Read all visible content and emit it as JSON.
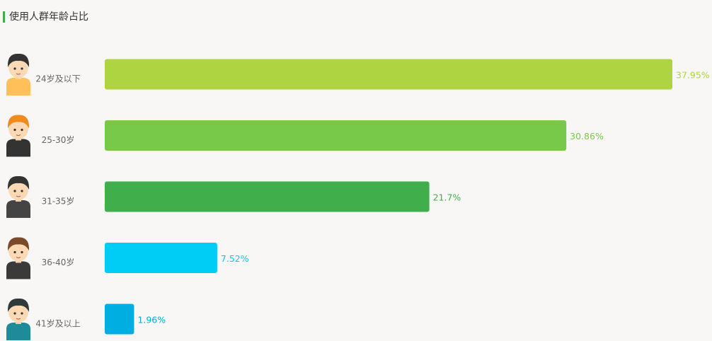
{
  "chart_data": {
    "type": "bar",
    "orientation": "horizontal",
    "title": "使用人群年龄占比",
    "categories": [
      "24岁及以下",
      "25-30岁",
      "31-35岁",
      "36-40岁",
      "41岁及以上"
    ],
    "values": [
      37.95,
      30.86,
      21.7,
      7.52,
      1.96
    ],
    "value_labels": [
      "37.95%",
      "30.86%",
      "21.7%",
      "7.52%",
      "1.96%"
    ],
    "colors": [
      "#aed541",
      "#78c84a",
      "#41ae4c",
      "#00cdf5",
      "#00aee1"
    ]
  }
}
